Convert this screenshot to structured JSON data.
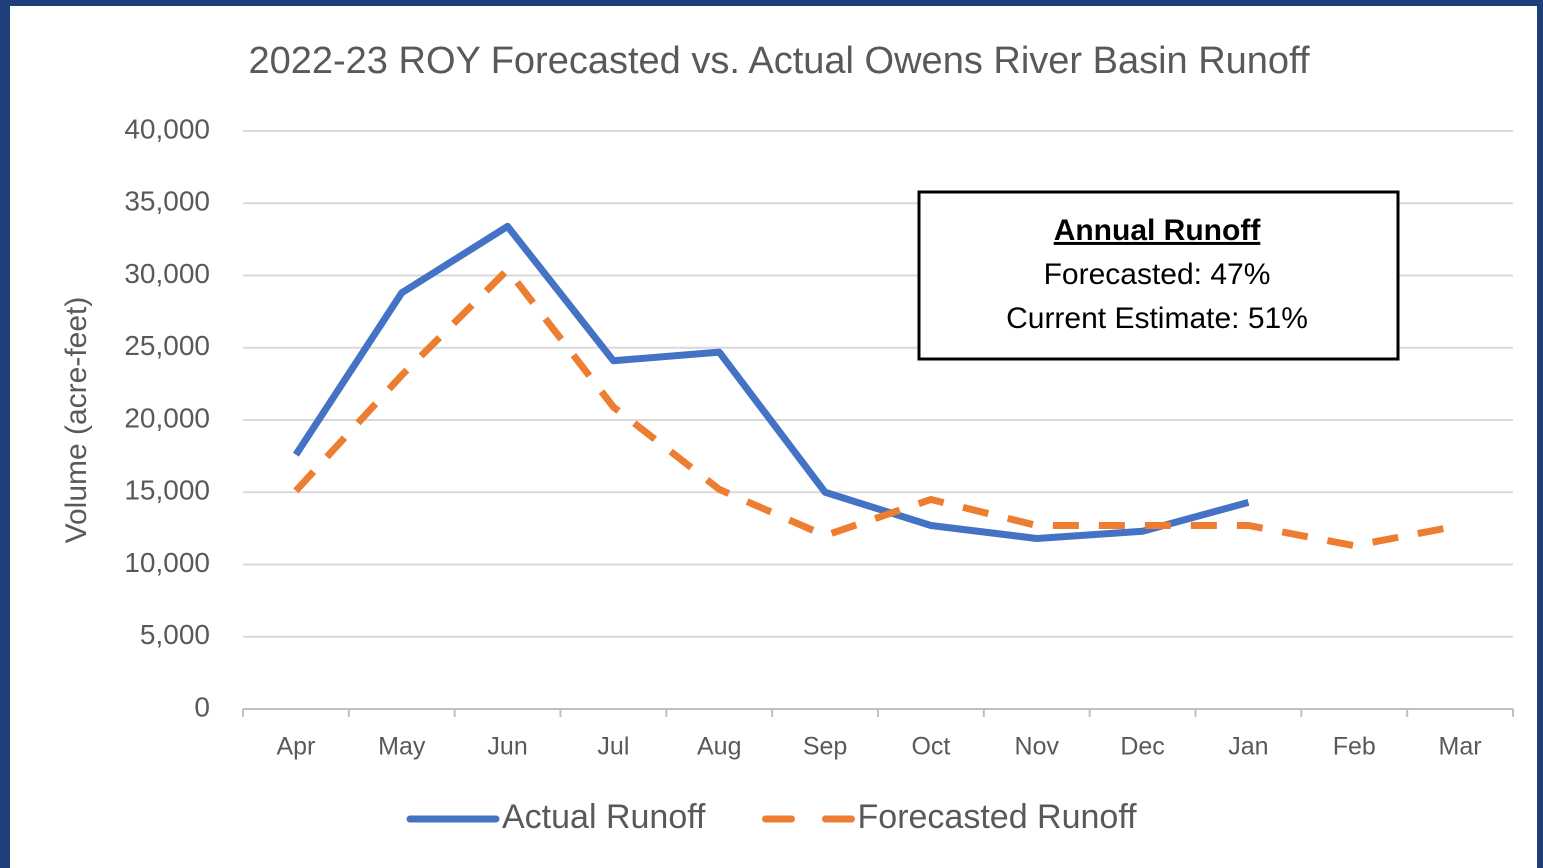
{
  "chart_data": {
    "type": "line",
    "title": "2022-23 ROY Forecasted vs. Actual Owens River Basin Runoff",
    "y_label": "Volume (acre-feet)",
    "categories": [
      "Apr",
      "May",
      "Jun",
      "Jul",
      "Aug",
      "Sep",
      "Oct",
      "Nov",
      "Dec",
      "Jan",
      "Feb",
      "Mar"
    ],
    "series": [
      {
        "name": "Actual Runoff",
        "color": "#4472c4",
        "dashed": false,
        "values": [
          17600,
          28800,
          33400,
          24100,
          24700,
          15000,
          12700,
          11800,
          12300,
          14300,
          null,
          null
        ]
      },
      {
        "name": "Forecasted Runoff",
        "color": "#ed7d31",
        "dashed": true,
        "values": [
          15100,
          23100,
          30400,
          20900,
          15200,
          12000,
          14500,
          12700,
          12700,
          12700,
          11300,
          12700
        ]
      }
    ],
    "ylim": [
      0,
      40000
    ],
    "yticks": [
      0,
      {
        "value": 5000,
        "label": "5,000"
      },
      {
        "value": 10000,
        "label": "10,000"
      },
      {
        "value": 15000,
        "label": "15,000"
      },
      {
        "value": 20000,
        "label": "20,000"
      },
      {
        "value": 25000,
        "label": "25,000"
      },
      {
        "value": 30000,
        "label": "30,000"
      },
      {
        "value": 35000,
        "label": "35,000"
      },
      {
        "value": 40000,
        "label": "40,000"
      }
    ],
    "grid": true,
    "legend": "bottom",
    "annotation": {
      "title": "Annual Runoff",
      "lines": [
        "Forecasted: 47%",
        "Current Estimate: 51%"
      ]
    }
  }
}
